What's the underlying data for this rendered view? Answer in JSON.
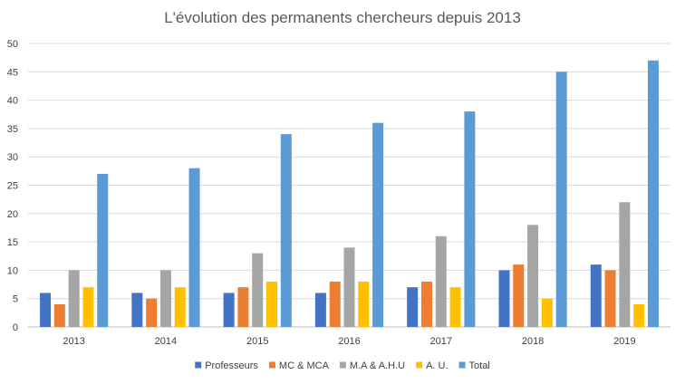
{
  "chart_data": {
    "type": "bar",
    "title": "L'évolution des permanents chercheurs depuis 2013",
    "xlabel": "",
    "ylabel": "",
    "categories": [
      "2013",
      "2014",
      "2015",
      "2016",
      "2017",
      "2018",
      "2019"
    ],
    "ylim": [
      0,
      50
    ],
    "yticks": [
      0,
      5,
      10,
      15,
      20,
      25,
      30,
      35,
      40,
      45,
      50
    ],
    "grid": true,
    "legend_position": "bottom",
    "series": [
      {
        "name": "Professeurs",
        "color": "#4472C4",
        "values": [
          6,
          6,
          6,
          6,
          7,
          10,
          11
        ]
      },
      {
        "name": "MC & MCA",
        "color": "#ED7D31",
        "values": [
          4,
          5,
          7,
          8,
          8,
          11,
          10
        ]
      },
      {
        "name": "M.A & A.H.U",
        "color": "#A5A5A5",
        "values": [
          10,
          10,
          13,
          14,
          16,
          18,
          22
        ]
      },
      {
        "name": "A. U.",
        "color": "#FFC000",
        "values": [
          7,
          7,
          8,
          8,
          7,
          5,
          4
        ]
      },
      {
        "name": "Total",
        "color": "#5B9BD5",
        "values": [
          27,
          28,
          34,
          36,
          38,
          45,
          47
        ]
      }
    ]
  }
}
